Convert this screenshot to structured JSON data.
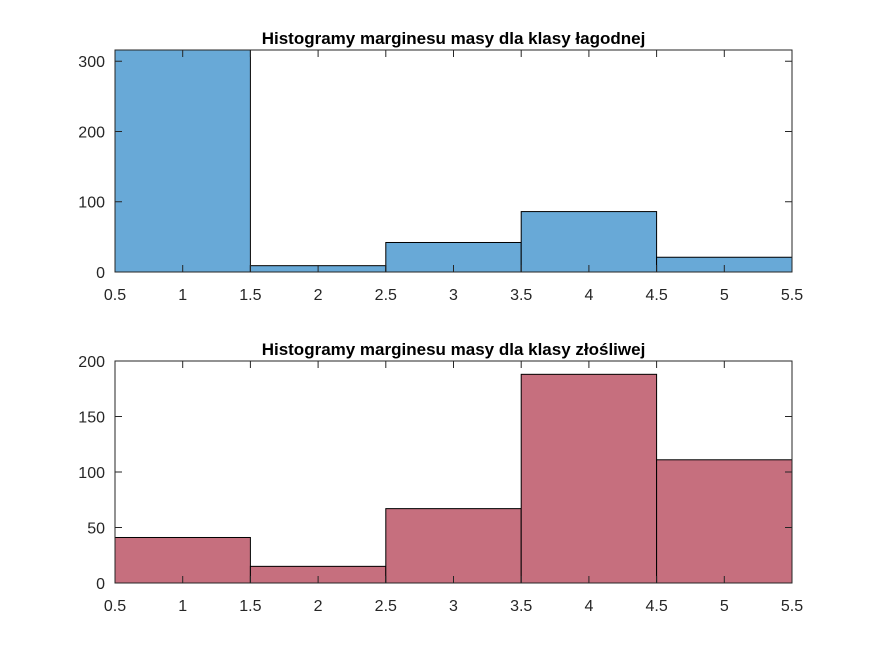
{
  "chart_data": [
    {
      "type": "bar",
      "title": "Histogramy marginesu masy dla klasy łagodnej",
      "xlabel": "",
      "ylabel": "",
      "bin_edges": [
        0.5,
        1.5,
        2.5,
        3.5,
        4.5,
        5.5
      ],
      "values": [
        316,
        9,
        42,
        86,
        21
      ],
      "xlim": [
        0.5,
        5.5
      ],
      "ylim": [
        0,
        316
      ],
      "xticks": [
        0.5,
        1,
        1.5,
        2,
        2.5,
        3,
        3.5,
        4,
        4.5,
        5,
        5.5
      ],
      "xtick_labels": [
        "0.5",
        "1",
        "1.5",
        "2",
        "2.5",
        "3",
        "3.5",
        "4",
        "4.5",
        "5",
        "5.5"
      ],
      "yticks": [
        0,
        100,
        200,
        300
      ],
      "ytick_labels": [
        "0",
        "100",
        "200",
        "300"
      ],
      "bar_color": "#68a9d7",
      "grid": false
    },
    {
      "type": "bar",
      "title": "Histogramy marginesu masy dla klasy złośliwej",
      "xlabel": "",
      "ylabel": "",
      "bin_edges": [
        0.5,
        1.5,
        2.5,
        3.5,
        4.5,
        5.5
      ],
      "values": [
        41,
        15,
        67,
        188,
        111
      ],
      "xlim": [
        0.5,
        5.5
      ],
      "ylim": [
        0,
        200
      ],
      "xticks": [
        0.5,
        1,
        1.5,
        2,
        2.5,
        3,
        3.5,
        4,
        4.5,
        5,
        5.5
      ],
      "xtick_labels": [
        "0.5",
        "1",
        "1.5",
        "2",
        "2.5",
        "3",
        "3.5",
        "4",
        "4.5",
        "5",
        "5.5"
      ],
      "yticks": [
        0,
        50,
        100,
        150,
        200
      ],
      "ytick_labels": [
        "0",
        "50",
        "100",
        "150",
        "200"
      ],
      "bar_color": "#c66f7e",
      "grid": false
    }
  ]
}
